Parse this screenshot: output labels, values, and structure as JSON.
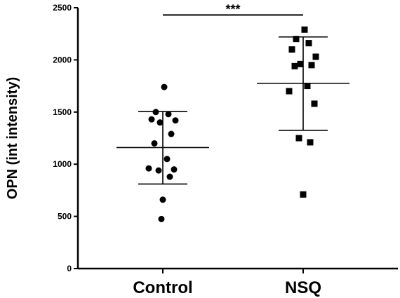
{
  "chart_data": {
    "type": "scatter",
    "title": "",
    "xlabel": "",
    "ylabel": "OPN (int intensity)",
    "ylim": [
      0,
      2500
    ],
    "yticks": [
      0,
      500,
      1000,
      1500,
      2000,
      2500
    ],
    "ytick_labels": [
      "0",
      "500",
      "1000",
      "1500",
      "2000",
      "2500"
    ],
    "categories": [
      "Control",
      "NSQ"
    ],
    "grid": false,
    "legend": "none",
    "series": [
      {
        "category": "Control",
        "marker": "circle",
        "color": "#000000",
        "values": [
          1740,
          1500,
          1480,
          1430,
          1420,
          1400,
          1290,
          1200,
          1050,
          960,
          950,
          940,
          880,
          660,
          475
        ],
        "mean": 1160,
        "sd_upper": 1505,
        "sd_lower": 810
      },
      {
        "category": "NSQ",
        "marker": "square",
        "color": "#000000",
        "values": [
          2290,
          2200,
          2160,
          2100,
          2030,
          1960,
          1950,
          1940,
          1750,
          1700,
          1580,
          1250,
          1210,
          710
        ],
        "mean": 1775,
        "sd_upper": 2220,
        "sd_lower": 1325
      }
    ],
    "annotations": [
      {
        "text": "***",
        "between": [
          "Control",
          "NSQ"
        ],
        "y": 2430
      }
    ]
  }
}
